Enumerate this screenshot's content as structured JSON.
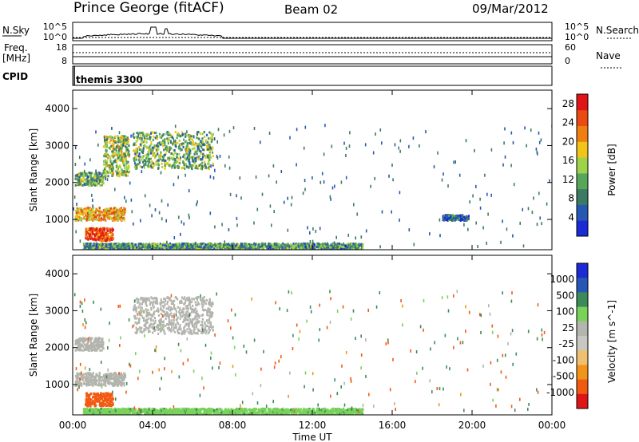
{
  "header": {
    "station": "Prince George (fitACF)",
    "beam": "Beam 02",
    "date": "09/Mar/2012"
  },
  "panels": {
    "nsky": {
      "label": "N.Sky",
      "left_ticks": [
        "10^5",
        "10^0"
      ],
      "right_ticks": [
        "10^5",
        "10^0"
      ],
      "right_label": "N.Search"
    },
    "freq": {
      "label_line1": "Freq.",
      "label_line2": "[MHz]",
      "left_ticks": [
        "18",
        "8"
      ],
      "right_ticks": [
        "60",
        "0"
      ],
      "right_label": "Nave"
    },
    "cpid": {
      "label": "CPID",
      "value": "themis 3300"
    }
  },
  "colors": {
    "power_scale": [
      "#1a2ad6",
      "#2757b5",
      "#3c7a63",
      "#57a65a",
      "#9ed24a",
      "#f0c418",
      "#f07f12",
      "#eb4a12",
      "#e01616"
    ],
    "velocity_scale": [
      "#e01616",
      "#f25a12",
      "#f2941a",
      "#f0c070",
      "#c8c8c0",
      "#b5b5b0",
      "#7ad25a",
      "#3c8a5a",
      "#2757b5",
      "#1a2ad6"
    ],
    "ground_scatter": "#b4b4ae"
  },
  "chart_data": [
    {
      "type": "heatmap",
      "title": "Power",
      "xlabel": "",
      "ylabel": "Slant Range [km]",
      "xlim": [
        "00:00",
        "00:00"
      ],
      "ylim": [
        180,
        4500
      ],
      "x_ticks": [
        "00:00",
        "04:00",
        "08:00",
        "12:00",
        "16:00",
        "20:00",
        "00:00"
      ],
      "y_ticks": [
        1000,
        2000,
        3000,
        4000
      ],
      "colorbar": {
        "label": "Power [dB]",
        "ticks": [
          4,
          8,
          12,
          16,
          20,
          24,
          28
        ],
        "range": [
          0,
          30
        ]
      },
      "regions": [
        {
          "x": [
            0.1,
            2.6
          ],
          "y": [
            1000,
            1350
          ],
          "value": 20
        },
        {
          "x": [
            0.1,
            1.5
          ],
          "y": [
            1950,
            2300
          ],
          "value": 12
        },
        {
          "x": [
            1.5,
            2.8
          ],
          "y": [
            2200,
            3300
          ],
          "value": 14
        },
        {
          "x": [
            0.6,
            2.0
          ],
          "y": [
            450,
            800
          ],
          "value": 26
        },
        {
          "x": [
            3.0,
            7.0
          ],
          "y": [
            2400,
            3400
          ],
          "value": 12
        },
        {
          "x": [
            0.5,
            14.5
          ],
          "y": [
            200,
            380
          ],
          "value": 10
        },
        {
          "x": [
            18.5,
            19.8
          ],
          "y": [
            1000,
            1150
          ],
          "value": 6
        }
      ]
    },
    {
      "type": "heatmap",
      "title": "Velocity",
      "xlabel": "Time UT",
      "ylabel": "Slant Range [km]",
      "xlim": [
        "00:00",
        "00:00"
      ],
      "ylim": [
        180,
        4500
      ],
      "x_ticks": [
        "00:00",
        "04:00",
        "08:00",
        "12:00",
        "16:00",
        "20:00",
        "00:00"
      ],
      "y_ticks": [
        1000,
        2000,
        3000,
        4000
      ],
      "colorbar": {
        "label": "Velocity [m s^-1]",
        "ticks": [
          "1000",
          "500",
          "100",
          "25",
          "-25",
          "-100",
          "-500",
          "-1000"
        ]
      },
      "regions": [
        {
          "x": [
            0.1,
            2.6
          ],
          "y": [
            1000,
            1350
          ],
          "value": 0
        },
        {
          "x": [
            0.1,
            1.5
          ],
          "y": [
            1950,
            2300
          ],
          "value": 0
        },
        {
          "x": [
            0.6,
            2.0
          ],
          "y": [
            450,
            800
          ],
          "value": -150
        },
        {
          "x": [
            3.0,
            7.0
          ],
          "y": [
            2400,
            3400
          ],
          "value": 0
        },
        {
          "x": [
            0.5,
            14.5
          ],
          "y": [
            200,
            380
          ],
          "value": 80
        }
      ]
    }
  ]
}
